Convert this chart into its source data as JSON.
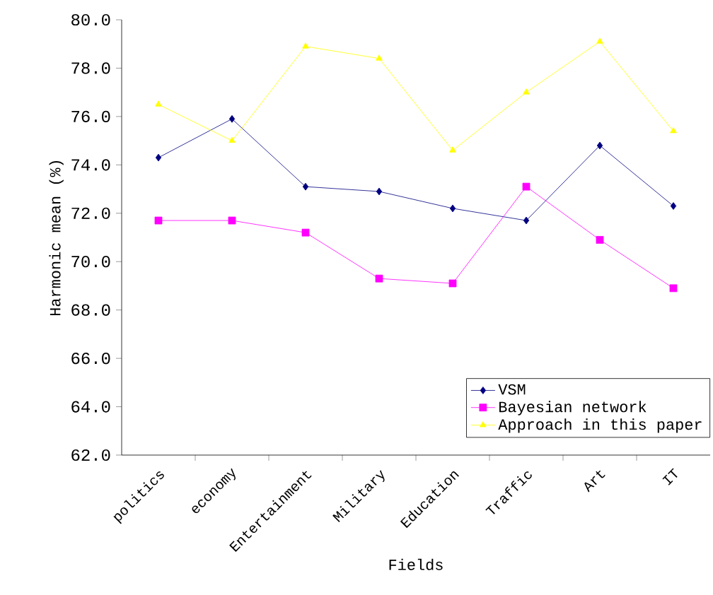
{
  "chart_data": {
    "type": "line",
    "xlabel": "Fields",
    "ylabel": "Harmonic mean (%)",
    "categories": [
      "politics",
      "economy",
      "Entertainment",
      "Military",
      "Education",
      "Traffic",
      "Art",
      "IT"
    ],
    "series": [
      {
        "name": "VSM",
        "color": "#000080",
        "marker": "diamond",
        "values": [
          74.3,
          75.9,
          73.1,
          72.9,
          72.2,
          71.7,
          74.8,
          72.3
        ]
      },
      {
        "name": "Bayesian network",
        "color": "#ff00ff",
        "marker": "square",
        "values": [
          71.7,
          71.7,
          71.2,
          69.3,
          69.1,
          73.1,
          70.9,
          68.9
        ]
      },
      {
        "name": "Approach in this paper",
        "color": "#ffff00",
        "marker": "triangle",
        "values": [
          76.5,
          75.0,
          78.9,
          78.4,
          74.6,
          77.0,
          79.1,
          75.4
        ]
      }
    ],
    "ylim": [
      62,
      80
    ],
    "yticks": [
      {
        "value": 62,
        "label": "62.0"
      },
      {
        "value": 64,
        "label": "64.0"
      },
      {
        "value": 66,
        "label": "66.0"
      },
      {
        "value": 68,
        "label": "68.0"
      },
      {
        "value": 70,
        "label": "70.0"
      },
      {
        "value": 72,
        "label": "72.0"
      },
      {
        "value": 74,
        "label": "74.0"
      },
      {
        "value": 76,
        "label": "76.0"
      },
      {
        "value": 78,
        "label": "78.0"
      },
      {
        "value": 80,
        "label": "80.0"
      }
    ],
    "grid": false,
    "legend": "bottom right",
    "line_style": "solid"
  }
}
